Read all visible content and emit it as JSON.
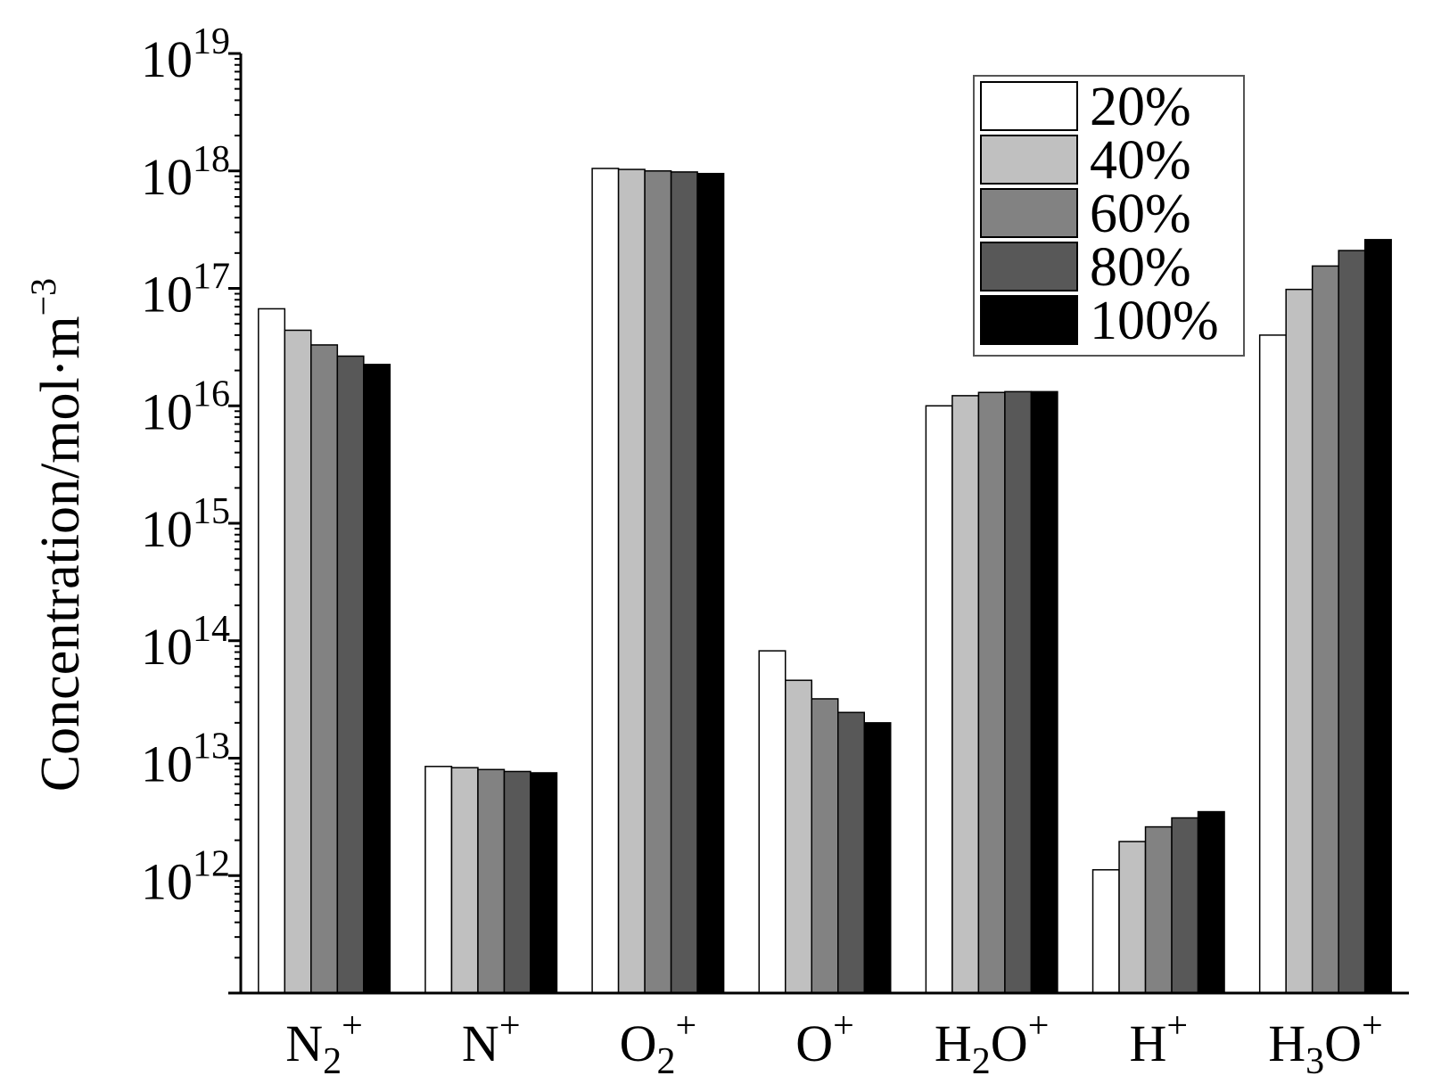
{
  "chart_data": {
    "type": "bar",
    "scale": "log",
    "ylabel": "Concentration/mol·m",
    "ylabel_exponent": "−3",
    "ylim": [
      100000000000.0,
      1e+19
    ],
    "yticks": [
      {
        "base": "10",
        "exp": "12",
        "value": 1000000000000.0
      },
      {
        "base": "10",
        "exp": "13",
        "value": 10000000000000.0
      },
      {
        "base": "10",
        "exp": "14",
        "value": 100000000000000.0
      },
      {
        "base": "10",
        "exp": "15",
        "value": 1000000000000000.0
      },
      {
        "base": "10",
        "exp": "16",
        "value": 1e+16
      },
      {
        "base": "10",
        "exp": "17",
        "value": 1e+17
      },
      {
        "base": "10",
        "exp": "18",
        "value": 1e+18
      },
      {
        "base": "10",
        "exp": "19",
        "value": 1e+19
      }
    ],
    "categories": [
      {
        "base": "N",
        "sub": "2",
        "sup": "+"
      },
      {
        "base": "N",
        "sub": "",
        "sup": "+"
      },
      {
        "base": "O",
        "sub": "2",
        "sup": "+"
      },
      {
        "base": "O",
        "sub": "",
        "sup": "+"
      },
      {
        "base": "H",
        "sub": "2",
        "tail": "O",
        "sup": "+"
      },
      {
        "base": "H",
        "sub": "",
        "sup": "+"
      },
      {
        "base": "H",
        "sub": "3",
        "tail": "O",
        "sup": "+"
      }
    ],
    "series": [
      {
        "name": "20%",
        "color": "#ffffff",
        "values": [
          6.7e+16,
          8500000000000.0,
          1.05e+18,
          82000000000000.0,
          1e+16,
          1120000000000.0,
          4e+16
        ]
      },
      {
        "name": "40%",
        "color": "#c0c0c0",
        "values": [
          4.4e+16,
          8300000000000.0,
          1.03e+18,
          46000000000000.0,
          1.22e+16,
          1950000000000.0,
          9.8e+16
        ]
      },
      {
        "name": "60%",
        "color": "#828282",
        "values": [
          3.3e+16,
          8000000000000.0,
          1e+18,
          32000000000000.0,
          1.3e+16,
          2600000000000.0,
          1.55e+17
        ]
      },
      {
        "name": "80%",
        "color": "#585858",
        "values": [
          2.65e+16,
          7700000000000.0,
          9.8e+17,
          24500000000000.0,
          1.32e+16,
          3100000000000.0,
          2.1e+17
        ]
      },
      {
        "name": "100%",
        "color": "#000000",
        "values": [
          2.25e+16,
          7500000000000.0,
          9.5e+17,
          20000000000000.0,
          1.32e+16,
          3500000000000.0,
          2.6e+17
        ]
      }
    ],
    "legend_position": "top-right",
    "grid": false
  }
}
